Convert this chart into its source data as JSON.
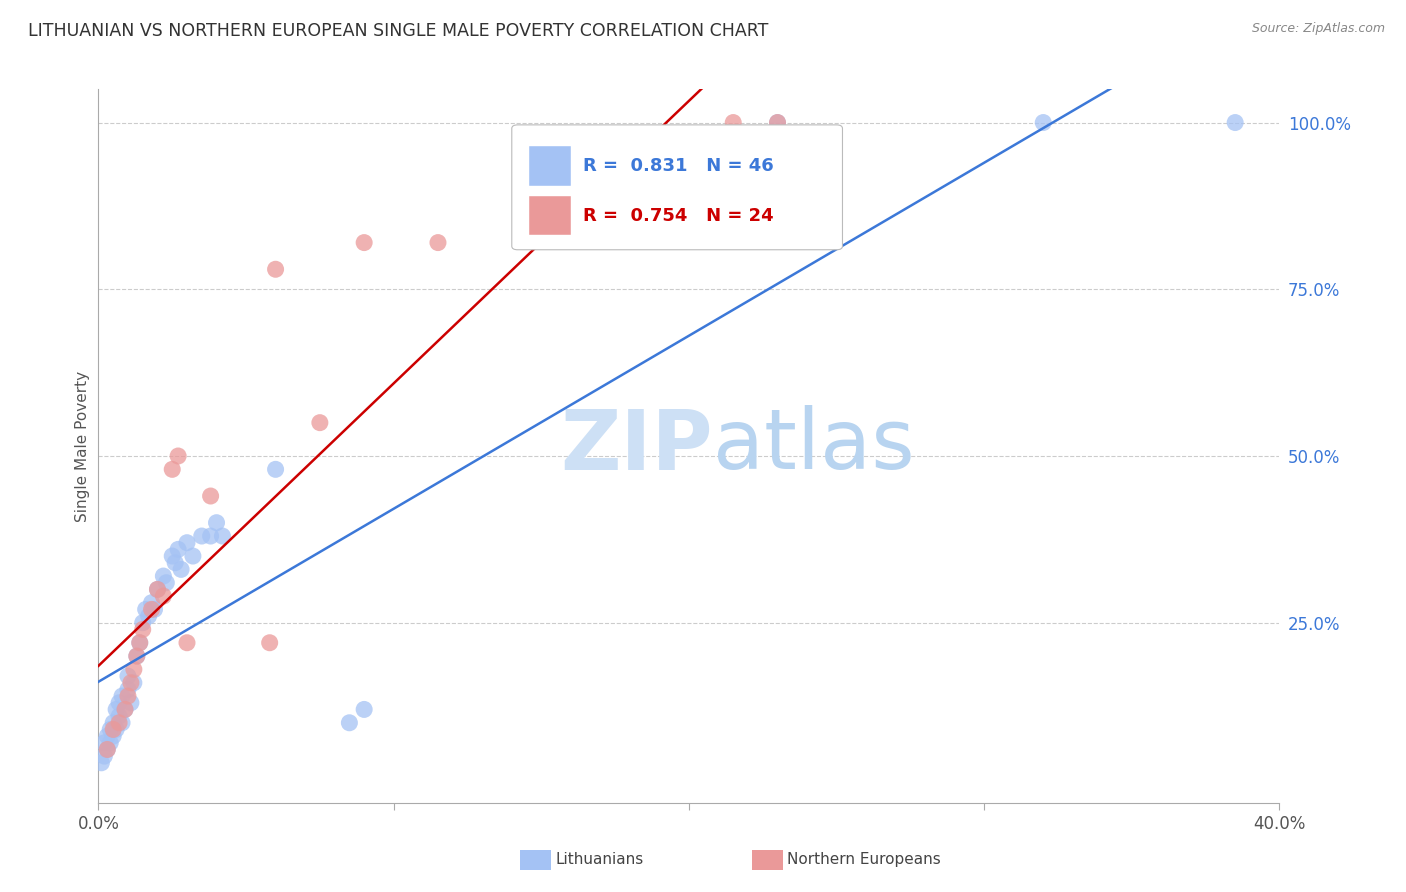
{
  "title": "LITHUANIAN VS NORTHERN EUROPEAN SINGLE MALE POVERTY CORRELATION CHART",
  "source": "Source: ZipAtlas.com",
  "ylabel": "Single Male Poverty",
  "xlim": [
    0.0,
    0.4
  ],
  "ylim": [
    -0.02,
    1.05
  ],
  "legend_blue_r": "0.831",
  "legend_blue_n": "46",
  "legend_pink_r": "0.754",
  "legend_pink_n": "24",
  "blue_color": "#a4c2f4",
  "pink_color": "#ea9999",
  "blue_line_color": "#3c78d8",
  "pink_line_color": "#cc0000",
  "title_color": "#333333",
  "source_color": "#888888",
  "right_tick_color": "#3c78d8",
  "axis_color": "#cccccc",
  "grid_color": "#cccccc",
  "blue_scatter": [
    [
      0.001,
      0.04
    ],
    [
      0.002,
      0.05
    ],
    [
      0.002,
      0.07
    ],
    [
      0.003,
      0.06
    ],
    [
      0.003,
      0.08
    ],
    [
      0.004,
      0.07
    ],
    [
      0.004,
      0.09
    ],
    [
      0.005,
      0.08
    ],
    [
      0.005,
      0.1
    ],
    [
      0.006,
      0.09
    ],
    [
      0.006,
      0.12
    ],
    [
      0.007,
      0.11
    ],
    [
      0.007,
      0.13
    ],
    [
      0.008,
      0.1
    ],
    [
      0.008,
      0.14
    ],
    [
      0.009,
      0.12
    ],
    [
      0.01,
      0.15
    ],
    [
      0.01,
      0.17
    ],
    [
      0.011,
      0.13
    ],
    [
      0.012,
      0.16
    ],
    [
      0.013,
      0.2
    ],
    [
      0.014,
      0.22
    ],
    [
      0.015,
      0.25
    ],
    [
      0.016,
      0.27
    ],
    [
      0.017,
      0.26
    ],
    [
      0.018,
      0.28
    ],
    [
      0.019,
      0.27
    ],
    [
      0.02,
      0.3
    ],
    [
      0.022,
      0.32
    ],
    [
      0.023,
      0.31
    ],
    [
      0.025,
      0.35
    ],
    [
      0.026,
      0.34
    ],
    [
      0.027,
      0.36
    ],
    [
      0.028,
      0.33
    ],
    [
      0.03,
      0.37
    ],
    [
      0.032,
      0.35
    ],
    [
      0.035,
      0.38
    ],
    [
      0.038,
      0.38
    ],
    [
      0.04,
      0.4
    ],
    [
      0.042,
      0.38
    ],
    [
      0.06,
      0.48
    ],
    [
      0.085,
      0.1
    ],
    [
      0.09,
      0.12
    ],
    [
      0.23,
      1.0
    ],
    [
      0.32,
      1.0
    ],
    [
      0.385,
      1.0
    ]
  ],
  "pink_scatter": [
    [
      0.003,
      0.06
    ],
    [
      0.005,
      0.09
    ],
    [
      0.007,
      0.1
    ],
    [
      0.009,
      0.12
    ],
    [
      0.01,
      0.14
    ],
    [
      0.011,
      0.16
    ],
    [
      0.012,
      0.18
    ],
    [
      0.013,
      0.2
    ],
    [
      0.014,
      0.22
    ],
    [
      0.015,
      0.24
    ],
    [
      0.018,
      0.27
    ],
    [
      0.02,
      0.3
    ],
    [
      0.022,
      0.29
    ],
    [
      0.025,
      0.48
    ],
    [
      0.027,
      0.5
    ],
    [
      0.03,
      0.22
    ],
    [
      0.038,
      0.44
    ],
    [
      0.058,
      0.22
    ],
    [
      0.06,
      0.78
    ],
    [
      0.075,
      0.55
    ],
    [
      0.09,
      0.82
    ],
    [
      0.115,
      0.82
    ],
    [
      0.215,
      1.0
    ],
    [
      0.23,
      1.0
    ]
  ]
}
